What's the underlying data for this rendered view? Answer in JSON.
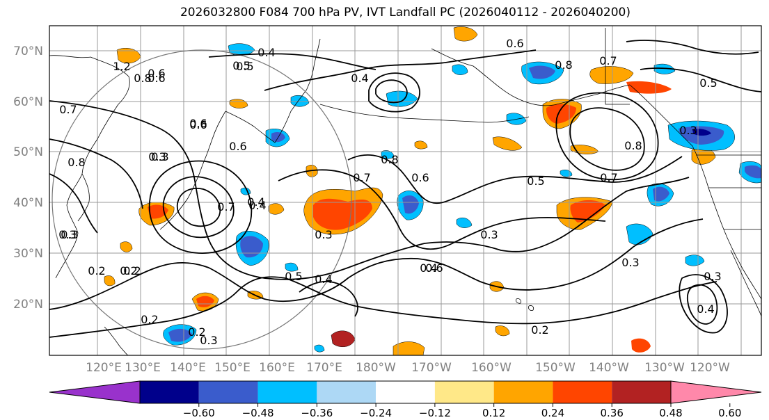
{
  "title": "2026032800 F084 700 hPa PV, IVT Landfall PC (2026040112 - 2026040200)",
  "lat_labels": [
    "70°N",
    "60°N",
    "50°N",
    "40°N",
    "30°N",
    "20°N"
  ],
  "lon_labels": [
    "120°E",
    "130°E",
    "140°E",
    "150°E",
    "160°E",
    "170°E",
    "180°W",
    "170°W",
    "160°W",
    "150°W",
    "140°W",
    "130°W",
    "120°W"
  ],
  "colorbar": {
    "tick_labels": [
      "−0.60",
      "−0.48",
      "−0.36",
      "−0.24",
      "−0.12",
      "0.12",
      "0.24",
      "0.36",
      "0.48",
      "0.60"
    ],
    "colors": [
      "#9932cc",
      "#00008b",
      "#3a5ccc",
      "#00bfff",
      "#add8f5",
      "#ffffff",
      "#ffe888",
      "#ffa500",
      "#ff4500",
      "#b22222",
      "#ff88aa"
    ]
  },
  "contour_labels": [
    "0.4",
    "0.5",
    "0.7",
    "0.6",
    "0.3",
    "0.6",
    "0.8",
    "0.2",
    "0.6",
    "0.8",
    "0.7",
    "0.4",
    "0.6",
    "0.5",
    "0.3",
    "0.7",
    "0.3",
    "0.4",
    "0.6",
    "0.8",
    "0.5",
    "0.7",
    "0.3",
    "0.2",
    "0.4",
    "0.2",
    "0.3",
    "0.5",
    "0.8",
    "0.6",
    "0.3",
    "0.3",
    "0.6",
    "0.4",
    "0.4",
    "0.2",
    "0.3",
    "0.2",
    "0.7",
    "1.2",
    "0.8",
    "0.6",
    "0.5",
    "0.4",
    "0.3",
    "0.2",
    "0.3"
  ]
}
